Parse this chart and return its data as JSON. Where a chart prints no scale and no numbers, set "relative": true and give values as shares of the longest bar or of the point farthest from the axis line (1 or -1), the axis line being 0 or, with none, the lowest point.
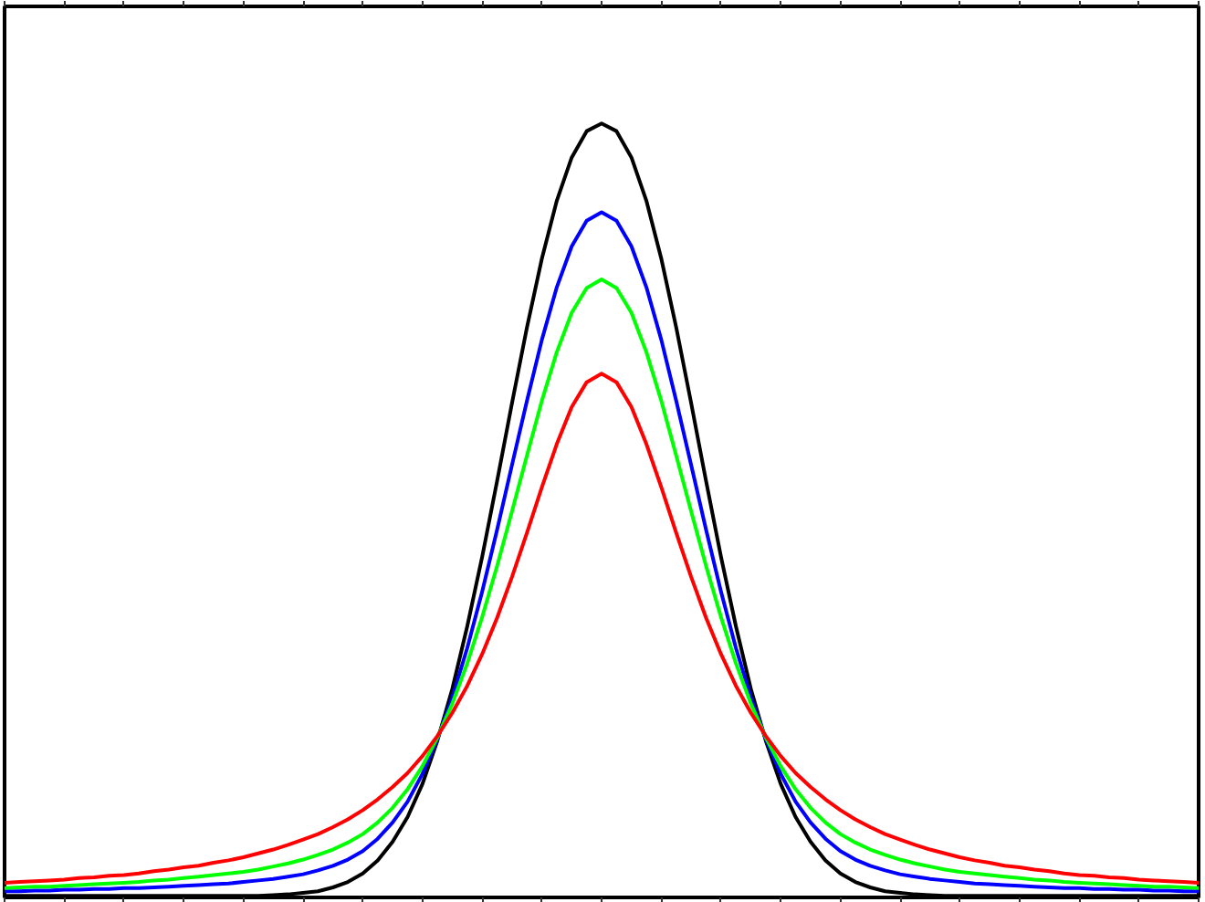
{
  "chart_data": {
    "type": "line",
    "relative": true,
    "grid": false,
    "categories": [
      null,
      null,
      null,
      null,
      null,
      null,
      null,
      null,
      null,
      null,
      null,
      null,
      null,
      null,
      null,
      null,
      null,
      null,
      null,
      null,
      null,
      null,
      null,
      null,
      null,
      null,
      null,
      null,
      null,
      null,
      null,
      null,
      null,
      null,
      null,
      null,
      null,
      null,
      null,
      null,
      null,
      null,
      null,
      null,
      null,
      null,
      null,
      null,
      null,
      null,
      null,
      null,
      null,
      null,
      null,
      null,
      null,
      null,
      null,
      null,
      null,
      null,
      null,
      null,
      null,
      null,
      null,
      null,
      null,
      null,
      null,
      null,
      null,
      null,
      null,
      null,
      null,
      null,
      null,
      null,
      null
    ],
    "series": [
      {
        "color": "#000000",
        "values": [
          0,
          0,
          0,
          0,
          0,
          0,
          0,
          0,
          0,
          0,
          0,
          0,
          0,
          0,
          0,
          0,
          0,
          0,
          0.001,
          0.002,
          0.004,
          0.006,
          0.011,
          0.018,
          0.029,
          0.046,
          0.07,
          0.102,
          0.145,
          0.201,
          0.268,
          0.349,
          0.439,
          0.537,
          0.638,
          0.736,
          0.825,
          0.9,
          0.956,
          0.99,
          1,
          0.99,
          0.956,
          0.9,
          0.825,
          0.736,
          0.638,
          0.537,
          0.439,
          0.349,
          0.268,
          0.201,
          0.145,
          0.102,
          0.07,
          0.046,
          0.029,
          0.018,
          0.011,
          0.006,
          0.004,
          0.002,
          0.001,
          0,
          0,
          0,
          0,
          0,
          0,
          0,
          0,
          0,
          0,
          0,
          0,
          0,
          0,
          0,
          0,
          0,
          0
        ]
      },
      {
        "color": "#0000ff",
        "values": [
          0.006,
          0.006,
          0.007,
          0.007,
          0.008,
          0.008,
          0.009,
          0.009,
          0.01,
          0.01,
          0.011,
          0.012,
          0.013,
          0.014,
          0.015,
          0.016,
          0.018,
          0.02,
          0.022,
          0.025,
          0.028,
          0.033,
          0.039,
          0.047,
          0.058,
          0.074,
          0.095,
          0.122,
          0.158,
          0.203,
          0.257,
          0.321,
          0.394,
          0.474,
          0.558,
          0.641,
          0.72,
          0.788,
          0.841,
          0.874,
          0.885,
          0.874,
          0.841,
          0.788,
          0.72,
          0.641,
          0.558,
          0.474,
          0.394,
          0.321,
          0.257,
          0.203,
          0.158,
          0.122,
          0.095,
          0.074,
          0.058,
          0.047,
          0.039,
          0.033,
          0.028,
          0.025,
          0.022,
          0.02,
          0.018,
          0.016,
          0.015,
          0.014,
          0.013,
          0.012,
          0.011,
          0.01,
          0.01,
          0.009,
          0.009,
          0.008,
          0.008,
          0.007,
          0.007,
          0.006,
          0.006
        ]
      },
      {
        "color": "#00ff00",
        "values": [
          0.01,
          0.011,
          0.012,
          0.012,
          0.013,
          0.014,
          0.015,
          0.016,
          0.017,
          0.018,
          0.02,
          0.021,
          0.023,
          0.025,
          0.027,
          0.029,
          0.031,
          0.034,
          0.038,
          0.042,
          0.047,
          0.053,
          0.06,
          0.069,
          0.08,
          0.095,
          0.114,
          0.138,
          0.168,
          0.205,
          0.249,
          0.301,
          0.361,
          0.427,
          0.498,
          0.57,
          0.641,
          0.704,
          0.755,
          0.787,
          0.798,
          0.787,
          0.755,
          0.704,
          0.641,
          0.57,
          0.498,
          0.427,
          0.361,
          0.301,
          0.249,
          0.205,
          0.168,
          0.138,
          0.114,
          0.095,
          0.08,
          0.069,
          0.06,
          0.053,
          0.047,
          0.042,
          0.038,
          0.034,
          0.031,
          0.029,
          0.027,
          0.025,
          0.023,
          0.021,
          0.02,
          0.018,
          0.017,
          0.016,
          0.015,
          0.014,
          0.013,
          0.012,
          0.012,
          0.011,
          0.01
        ]
      },
      {
        "color": "#ff0000",
        "values": [
          0.017,
          0.018,
          0.019,
          0.02,
          0.021,
          0.023,
          0.024,
          0.026,
          0.027,
          0.029,
          0.032,
          0.034,
          0.037,
          0.039,
          0.043,
          0.046,
          0.05,
          0.055,
          0.06,
          0.066,
          0.073,
          0.08,
          0.089,
          0.099,
          0.111,
          0.125,
          0.141,
          0.159,
          0.181,
          0.207,
          0.237,
          0.272,
          0.313,
          0.36,
          0.413,
          0.47,
          0.529,
          0.585,
          0.633,
          0.665,
          0.676,
          0.665,
          0.633,
          0.585,
          0.529,
          0.47,
          0.413,
          0.36,
          0.313,
          0.272,
          0.237,
          0.207,
          0.181,
          0.159,
          0.141,
          0.125,
          0.111,
          0.099,
          0.089,
          0.08,
          0.073,
          0.066,
          0.06,
          0.055,
          0.05,
          0.046,
          0.043,
          0.039,
          0.037,
          0.034,
          0.032,
          0.029,
          0.027,
          0.026,
          0.024,
          0.023,
          0.021,
          0.02,
          0.019,
          0.018,
          0.017
        ]
      }
    ]
  }
}
